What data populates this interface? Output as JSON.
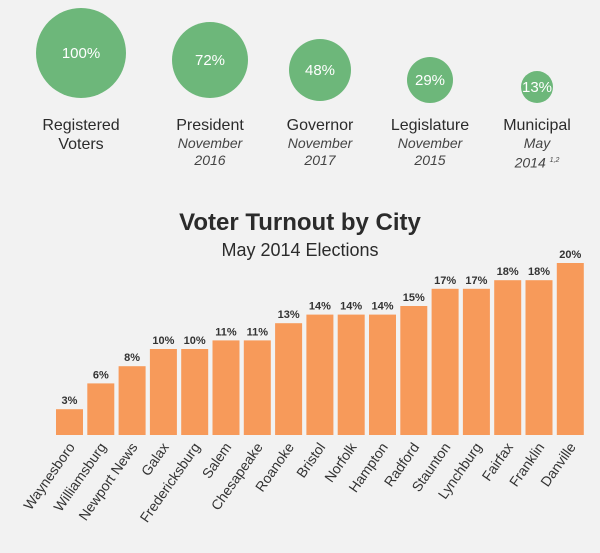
{
  "summary": [
    {
      "value": "100%",
      "pct": 100,
      "title": "Registered Voters",
      "sub1": "",
      "sub2": "",
      "note": ""
    },
    {
      "value": "72%",
      "pct": 72,
      "title": "President",
      "sub1": "November",
      "sub2": "2016",
      "note": ""
    },
    {
      "value": "48%",
      "pct": 48,
      "title": "Governor",
      "sub1": "November",
      "sub2": "2017",
      "note": ""
    },
    {
      "value": "29%",
      "pct": 29,
      "title": "Legislature",
      "sub1": "November",
      "sub2": "2015",
      "note": ""
    },
    {
      "value": "13%",
      "pct": 13,
      "title": "Municipal",
      "sub1": "May",
      "sub2": "2014",
      "note": "1,2"
    }
  ],
  "colors": {
    "circle": "#6db77a",
    "bar": "#f79a5a",
    "background": "#f2f2f2"
  },
  "chart_data": {
    "type": "bar",
    "title": "Voter Turnout by City",
    "subtitle": "May 2014 Elections",
    "categories": [
      "Waynesboro",
      "Williamsburg",
      "Newport News",
      "Galax",
      "Fredericksburg",
      "Salem",
      "Chesapeake",
      "Roanoke",
      "Bristol",
      "Norfolk",
      "Hampton",
      "Radford",
      "Staunton",
      "Lynchburg",
      "Fairfax",
      "Franklin",
      "Danville"
    ],
    "values": [
      3,
      6,
      8,
      10,
      10,
      11,
      11,
      13,
      14,
      14,
      14,
      15,
      17,
      17,
      18,
      18,
      20
    ],
    "data_labels": [
      "3%",
      "6%",
      "8%",
      "10%",
      "10%",
      "11%",
      "11%",
      "13%",
      "14%",
      "14%",
      "14%",
      "15%",
      "17%",
      "17%",
      "18%",
      "18%",
      "20%"
    ],
    "ylim": [
      0,
      20
    ],
    "grid": false,
    "xlabel": "",
    "ylabel": ""
  }
}
